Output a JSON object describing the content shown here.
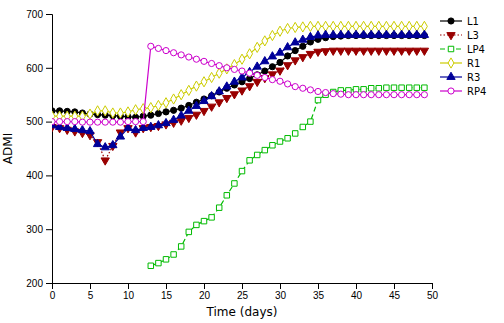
{
  "chart_data": {
    "type": "line",
    "xlabel": "Time (days)",
    "ylabel": "ADMI",
    "xlim": [
      0,
      50
    ],
    "ylim": [
      200,
      700
    ],
    "xticks": [
      0,
      5,
      10,
      15,
      20,
      25,
      30,
      35,
      40,
      45,
      50
    ],
    "yticks": [
      200,
      300,
      400,
      500,
      600,
      700
    ],
    "legend": "upper right",
    "series": [
      {
        "name": "L1",
        "color": "#000000",
        "marker": "circle",
        "line_style": "solid",
        "x": [
          0,
          1,
          2,
          3,
          4,
          5,
          6,
          7,
          8,
          9,
          10,
          11,
          12,
          13,
          14,
          15,
          16,
          17,
          18,
          19,
          20,
          21,
          22,
          23,
          24,
          25,
          26,
          27,
          28,
          29,
          30,
          31,
          32,
          33,
          34,
          35,
          36,
          37,
          38,
          39,
          40,
          41,
          42,
          43,
          44,
          45,
          46,
          47,
          48,
          49
        ],
        "values": [
          520,
          520,
          519,
          518,
          516,
          514,
          513,
          512,
          511,
          510,
          509,
          508,
          510,
          512,
          515,
          518,
          521,
          525,
          530,
          536,
          542,
          548,
          555,
          562,
          568,
          574,
          580,
          587,
          594,
          602,
          610,
          622,
          632,
          640,
          648,
          653,
          656,
          658,
          659,
          660,
          660,
          660,
          660,
          660,
          660,
          660,
          660,
          660,
          660,
          660
        ]
      },
      {
        "name": "L3",
        "color": "#990000",
        "marker": "triangle-down",
        "line_style": "dotted",
        "x": [
          0,
          1,
          2,
          3,
          4,
          5,
          6,
          7,
          8,
          9,
          10,
          11,
          12,
          13,
          14,
          15,
          16,
          17,
          18,
          19,
          20,
          21,
          22,
          23,
          24,
          25,
          26,
          27,
          28,
          29,
          30,
          31,
          32,
          33,
          34,
          35,
          36,
          37,
          38,
          39,
          40,
          41,
          42,
          43,
          44,
          45,
          46,
          47,
          48,
          49
        ],
        "values": [
          490,
          488,
          485,
          482,
          479,
          475,
          462,
          428,
          455,
          480,
          488,
          480,
          488,
          490,
          492,
          495,
          498,
          502,
          507,
          513,
          520,
          528,
          536,
          544,
          551,
          558,
          566,
          574,
          581,
          588,
          595,
          605,
          614,
          620,
          626,
          630,
          631,
          632,
          632,
          632,
          632,
          632,
          632,
          632,
          632,
          632,
          632,
          632,
          632,
          632
        ]
      },
      {
        "name": "LP4",
        "color": "#00BB00",
        "marker": "square-open",
        "line_style": "dashed",
        "x": [
          13,
          14,
          15,
          16,
          17,
          18,
          19,
          20,
          21,
          22,
          23,
          24,
          25,
          26,
          27,
          28,
          29,
          30,
          31,
          32,
          33,
          34,
          35,
          36,
          37,
          38,
          39,
          40,
          41,
          42,
          43,
          44,
          45,
          46,
          47,
          48,
          49
        ],
        "values": [
          232,
          237,
          244,
          253,
          268,
          295,
          308,
          315,
          322,
          340,
          363,
          385,
          408,
          428,
          438,
          447,
          456,
          463,
          469,
          478,
          490,
          500,
          540,
          550,
          555,
          558,
          558,
          560,
          560,
          562,
          562,
          563,
          563,
          563,
          563,
          563,
          563
        ]
      },
      {
        "name": "R1",
        "color": "#CCCC00",
        "marker": "diamond-open",
        "line_style": "solid",
        "x": [
          0,
          1,
          2,
          3,
          4,
          5,
          6,
          7,
          8,
          9,
          10,
          11,
          12,
          13,
          14,
          15,
          16,
          17,
          18,
          19,
          20,
          21,
          22,
          23,
          24,
          25,
          26,
          27,
          28,
          29,
          30,
          31,
          32,
          33,
          34,
          35,
          36,
          37,
          38,
          39,
          40,
          41,
          42,
          43,
          44,
          45,
          46,
          47,
          48,
          49
        ],
        "values": [
          510,
          510,
          510,
          510,
          510,
          514,
          520,
          520,
          516,
          516,
          518,
          522,
          524,
          526,
          530,
          535,
          542,
          550,
          558,
          566,
          574,
          582,
          590,
          598,
          606,
          616,
          626,
          638,
          650,
          660,
          668,
          673,
          675,
          676,
          677,
          677,
          677,
          677,
          677,
          677,
          677,
          677,
          677,
          677,
          677,
          677,
          677,
          677,
          677,
          677
        ]
      },
      {
        "name": "R3",
        "color": "#000099",
        "marker": "triangle-up",
        "line_style": "solid",
        "x": [
          0,
          1,
          2,
          3,
          4,
          5,
          6,
          7,
          8,
          9,
          10,
          11,
          12,
          13,
          14,
          15,
          16,
          17,
          18,
          19,
          20,
          21,
          22,
          23,
          24,
          25,
          26,
          27,
          28,
          29,
          30,
          31,
          32,
          33,
          34,
          35,
          36,
          37,
          38,
          39,
          40,
          41,
          42,
          43,
          44,
          45,
          46,
          47,
          48,
          49
        ],
        "values": [
          493,
          490,
          488,
          486,
          484,
          482,
          458,
          452,
          456,
          472,
          488,
          484,
          488,
          490,
          493,
          497,
          503,
          511,
          520,
          529,
          538,
          547,
          556,
          565,
          574,
          582,
          592,
          602,
          612,
          621,
          628,
          638,
          647,
          652,
          657,
          660,
          661,
          661,
          661,
          661,
          661,
          661,
          661,
          661,
          661,
          661,
          661,
          661,
          661,
          661
        ]
      },
      {
        "name": "RP4",
        "color": "#CC00CC",
        "marker": "circle-open",
        "line_style": "solid",
        "x": [
          0,
          1,
          2,
          3,
          4,
          5,
          6,
          7,
          8,
          9,
          10,
          11,
          12,
          13,
          14,
          15,
          16,
          17,
          18,
          19,
          20,
          21,
          22,
          23,
          24,
          25,
          26,
          27,
          28,
          29,
          30,
          31,
          32,
          33,
          34,
          35,
          36,
          37,
          38,
          39,
          40,
          41,
          42,
          43,
          44,
          45,
          46,
          47,
          48,
          49
        ],
        "values": [
          500,
          500,
          500,
          500,
          499,
          499,
          499,
          499,
          499,
          499,
          500,
          500,
          500,
          640,
          636,
          632,
          628,
          624,
          620,
          616,
          612,
          608,
          604,
          600,
          597,
          594,
          590,
          586,
          582,
          578,
          575,
          570,
          565,
          562,
          559,
          556,
          554,
          552,
          551,
          550,
          550,
          550,
          550,
          550,
          550,
          550,
          550,
          550,
          550,
          550
        ]
      }
    ]
  }
}
